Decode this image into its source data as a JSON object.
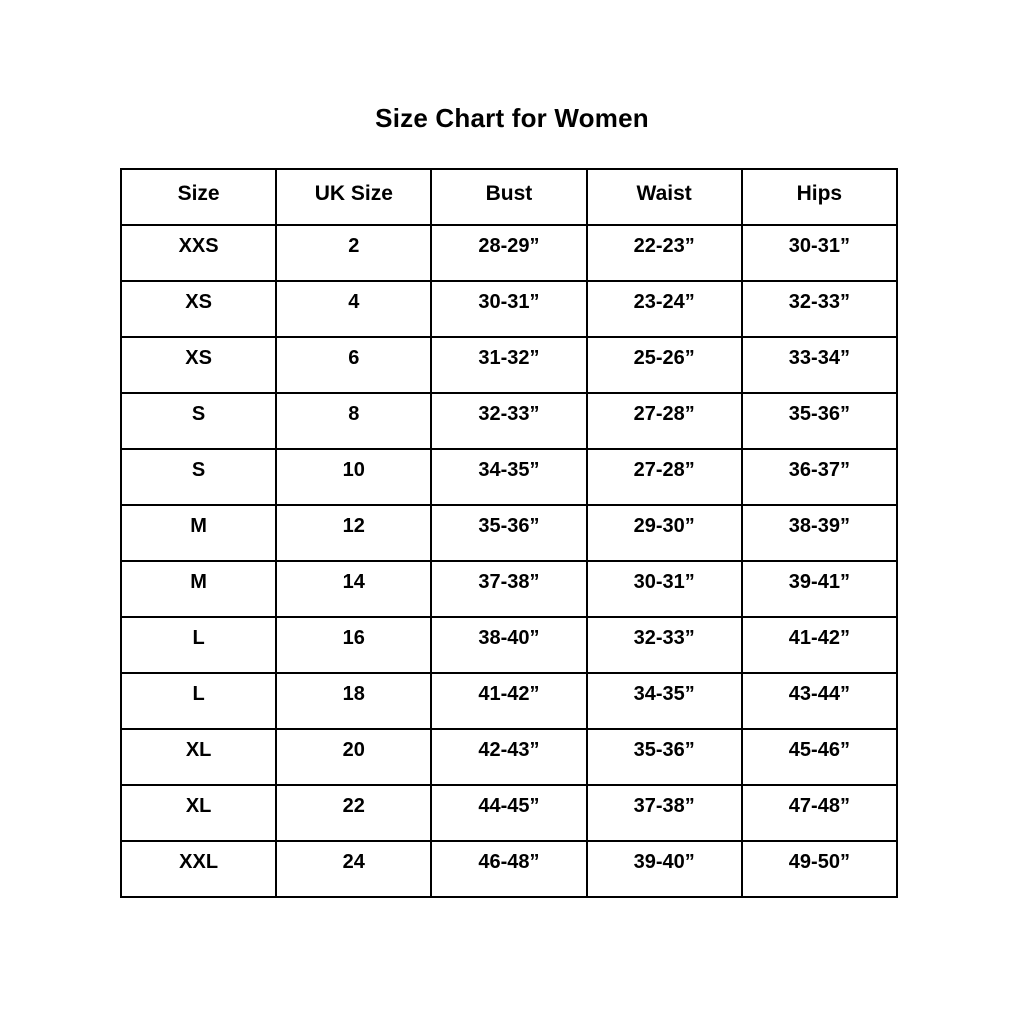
{
  "page": {
    "title": "Size Chart for Women"
  },
  "colors": {
    "background": "#ffffff",
    "text": "#000000",
    "border": "#000000"
  },
  "chart_data": {
    "type": "table",
    "title": "Size Chart for Women",
    "columns": [
      "Size",
      "UK Size",
      "Bust",
      "Waist",
      "Hips"
    ],
    "column_keys": [
      "size",
      "uk-size",
      "bust",
      "waist",
      "hips"
    ],
    "rows": [
      [
        "XXS",
        "2",
        "28-29”",
        "22-23”",
        "30-31”"
      ],
      [
        "XS",
        "4",
        "30-31”",
        "23-24”",
        "32-33”"
      ],
      [
        "XS",
        "6",
        "31-32”",
        "25-26”",
        "33-34”"
      ],
      [
        "S",
        "8",
        "32-33”",
        "27-28”",
        "35-36”"
      ],
      [
        "S",
        "10",
        "34-35”",
        "27-28”",
        "36-37”"
      ],
      [
        "M",
        "12",
        "35-36”",
        "29-30”",
        "38-39”"
      ],
      [
        "M",
        "14",
        "37-38”",
        "30-31”",
        "39-41”"
      ],
      [
        "L",
        "16",
        "38-40”",
        "32-33”",
        "41-42”"
      ],
      [
        "L",
        "18",
        "41-42”",
        "34-35”",
        "43-44”"
      ],
      [
        "XL",
        "20",
        "42-43”",
        "35-36”",
        "45-46”"
      ],
      [
        "XL",
        "22",
        "44-45”",
        "37-38”",
        "47-48”"
      ],
      [
        "XXL",
        "24",
        "46-48”",
        "39-40”",
        "49-50”"
      ]
    ],
    "layout": {
      "grid": "full-borders",
      "header_position": "top",
      "text_alignment": "center"
    }
  }
}
